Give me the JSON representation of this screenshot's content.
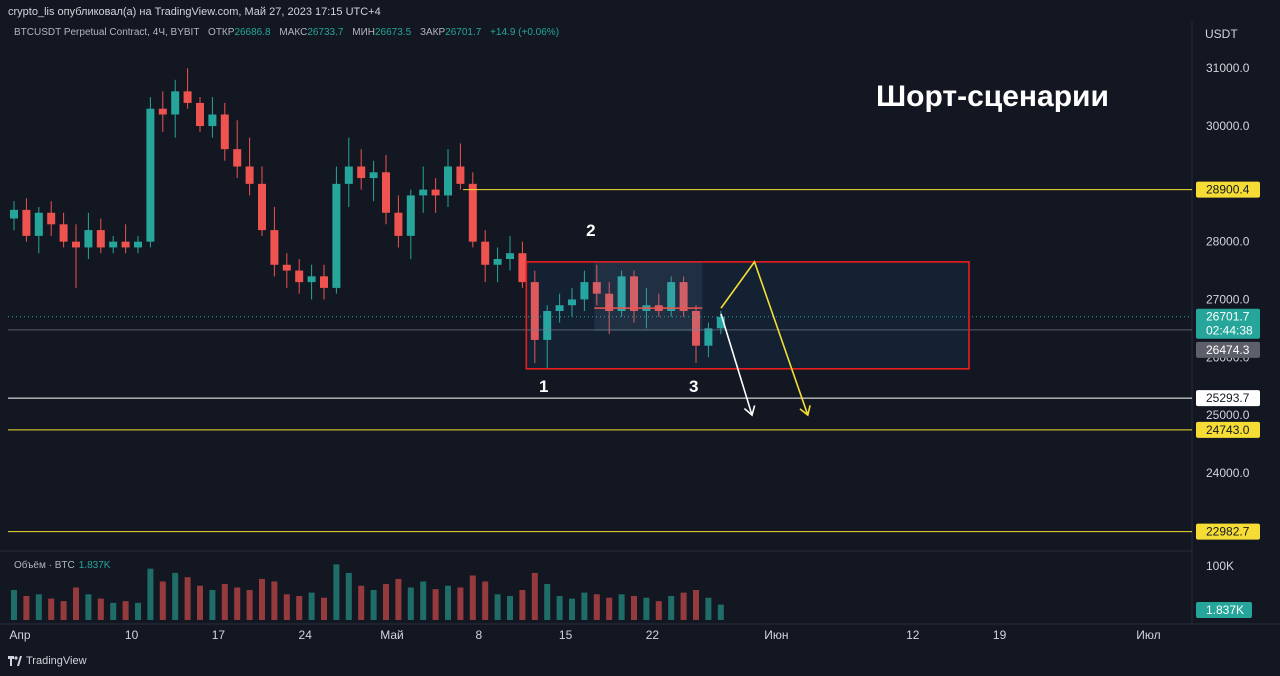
{
  "header": {
    "published": "crypto_lis опубликовал(а) на TradingView.com, Май 27, 2023 17:15 UTC+4"
  },
  "legend": {
    "symbol": "BTCUSDT Perpetual Contract, 4Ч, BYBIT",
    "open_label": "ОТКР",
    "open": "26686.8",
    "high_label": "МАКС",
    "high": "26733.7",
    "low_label": "МИН",
    "low": "26673.5",
    "close_label": "ЗАКР",
    "close": "26701.7",
    "change": "+14.9 (+0.06%)"
  },
  "volume_legend": {
    "label": "Объём · BTC",
    "value": "1.837K"
  },
  "footer": {
    "brand": "TradingView"
  },
  "colors": {
    "background": "#131722",
    "up": "#26a69a",
    "down": "#ef5350",
    "yellow": "#f5dd36",
    "white": "#ffffff",
    "box_border": "#e91e1e"
  },
  "chart_data": {
    "type": "candlestick",
    "title": "Шорт-сценарии",
    "currency": "USDT",
    "y_ticks": [
      "31000.0",
      "30000.0",
      "28000.0",
      "27000.0",
      "26000.0",
      "25000.0",
      "24000.0"
    ],
    "ylim": [
      22700,
      31800
    ],
    "x_ticks": [
      {
        "label": "Апр",
        "day": 0
      },
      {
        "label": "10",
        "day": 9
      },
      {
        "label": "17",
        "day": 16
      },
      {
        "label": "24",
        "day": 23
      },
      {
        "label": "Май",
        "day": 30
      },
      {
        "label": "8",
        "day": 37
      },
      {
        "label": "15",
        "day": 44
      },
      {
        "label": "22",
        "day": 51
      },
      {
        "label": "Июн",
        "day": 61
      },
      {
        "label": "12",
        "day": 72
      },
      {
        "label": "19",
        "day": 79
      },
      {
        "label": "Июл",
        "day": 91
      }
    ],
    "levels": [
      {
        "value": "28900.4",
        "color": "yellow",
        "start_day": 36.7
      },
      {
        "value": "25293.7",
        "color": "white",
        "start_day": 0
      },
      {
        "value": "24743.0",
        "color": "yellow",
        "start_day": 0
      },
      {
        "value": "22982.7",
        "color": "yellow",
        "start_day": 0
      }
    ],
    "price_tags": [
      {
        "value": "26701.7",
        "sub": "02:44:38",
        "kind": "last"
      },
      {
        "value": "26474.3",
        "kind": "grey"
      }
    ],
    "gray_line_value": 26474.3,
    "range_box": {
      "day_start": 41.8,
      "day_end": 77.5,
      "top": 27650,
      "bottom": 25800
    },
    "labels": [
      {
        "text": "1",
        "day": 43.2,
        "price": 25400
      },
      {
        "text": "2",
        "day": 47.0,
        "price": 28100
      },
      {
        "text": "3",
        "day": 55.3,
        "price": 25400
      }
    ],
    "scenarios": [
      {
        "color": "white",
        "points": [
          [
            57.5,
            26750
          ],
          [
            60.0,
            25000
          ]
        ]
      },
      {
        "color": "yellow",
        "points": [
          [
            57.5,
            26850
          ],
          [
            60.2,
            27650
          ],
          [
            64.5,
            25000
          ]
        ]
      }
    ],
    "volume_axis": "100K",
    "volume_tag": "1.837K",
    "candles": [
      {
        "day": 0,
        "o": 28400,
        "h": 28700,
        "l": 28200,
        "c": 28550
      },
      {
        "day": 1,
        "o": 28550,
        "h": 28750,
        "l": 28000,
        "c": 28100
      },
      {
        "day": 2,
        "o": 28100,
        "h": 28600,
        "l": 27800,
        "c": 28500
      },
      {
        "day": 3,
        "o": 28500,
        "h": 28700,
        "l": 28100,
        "c": 28300
      },
      {
        "day": 4,
        "o": 28300,
        "h": 28500,
        "l": 27900,
        "c": 28000
      },
      {
        "day": 5,
        "o": 28000,
        "h": 28300,
        "l": 27200,
        "c": 27900
      },
      {
        "day": 6,
        "o": 27900,
        "h": 28500,
        "l": 27700,
        "c": 28200
      },
      {
        "day": 7,
        "o": 28200,
        "h": 28400,
        "l": 27800,
        "c": 27900
      },
      {
        "day": 8,
        "o": 27900,
        "h": 28100,
        "l": 27800,
        "c": 28000
      },
      {
        "day": 9,
        "o": 28000,
        "h": 28300,
        "l": 27800,
        "c": 27900
      },
      {
        "day": 10,
        "o": 27900,
        "h": 28100,
        "l": 27800,
        "c": 28000
      },
      {
        "day": 11,
        "o": 28000,
        "h": 30500,
        "l": 27900,
        "c": 30300
      },
      {
        "day": 12,
        "o": 30300,
        "h": 30600,
        "l": 29900,
        "c": 30200
      },
      {
        "day": 13,
        "o": 30200,
        "h": 30800,
        "l": 29800,
        "c": 30600
      },
      {
        "day": 14,
        "o": 30600,
        "h": 31000,
        "l": 30300,
        "c": 30400
      },
      {
        "day": 15,
        "o": 30400,
        "h": 30500,
        "l": 29900,
        "c": 30000
      },
      {
        "day": 16,
        "o": 30000,
        "h": 30500,
        "l": 29800,
        "c": 30200
      },
      {
        "day": 17,
        "o": 30200,
        "h": 30400,
        "l": 29400,
        "c": 29600
      },
      {
        "day": 18,
        "o": 29600,
        "h": 30100,
        "l": 29100,
        "c": 29300
      },
      {
        "day": 19,
        "o": 29300,
        "h": 29800,
        "l": 28800,
        "c": 29000
      },
      {
        "day": 20,
        "o": 29000,
        "h": 29300,
        "l": 28100,
        "c": 28200
      },
      {
        "day": 21,
        "o": 28200,
        "h": 28600,
        "l": 27400,
        "c": 27600
      },
      {
        "day": 22,
        "o": 27600,
        "h": 27800,
        "l": 27200,
        "c": 27500
      },
      {
        "day": 23,
        "o": 27500,
        "h": 27700,
        "l": 27100,
        "c": 27300
      },
      {
        "day": 24,
        "o": 27300,
        "h": 27600,
        "l": 27000,
        "c": 27400
      },
      {
        "day": 25,
        "o": 27400,
        "h": 27600,
        "l": 27000,
        "c": 27200
      },
      {
        "day": 26,
        "o": 27200,
        "h": 29300,
        "l": 27100,
        "c": 29000
      },
      {
        "day": 27,
        "o": 29000,
        "h": 29800,
        "l": 28600,
        "c": 29300
      },
      {
        "day": 28,
        "o": 29300,
        "h": 29600,
        "l": 28900,
        "c": 29100
      },
      {
        "day": 29,
        "o": 29100,
        "h": 29400,
        "l": 28700,
        "c": 29200
      },
      {
        "day": 30,
        "o": 29200,
        "h": 29500,
        "l": 28300,
        "c": 28500
      },
      {
        "day": 31,
        "o": 28500,
        "h": 28800,
        "l": 27900,
        "c": 28100
      },
      {
        "day": 32,
        "o": 28100,
        "h": 28900,
        "l": 27700,
        "c": 28800
      },
      {
        "day": 33,
        "o": 28800,
        "h": 29300,
        "l": 28500,
        "c": 28900
      },
      {
        "day": 34,
        "o": 28900,
        "h": 29100,
        "l": 28500,
        "c": 28800
      },
      {
        "day": 35,
        "o": 28800,
        "h": 29600,
        "l": 28600,
        "c": 29300
      },
      {
        "day": 36,
        "o": 29300,
        "h": 29700,
        "l": 28900,
        "c": 29000
      },
      {
        "day": 37,
        "o": 29000,
        "h": 29200,
        "l": 27900,
        "c": 28000
      },
      {
        "day": 38,
        "o": 28000,
        "h": 28200,
        "l": 27300,
        "c": 27600
      },
      {
        "day": 39,
        "o": 27600,
        "h": 27900,
        "l": 27300,
        "c": 27700
      },
      {
        "day": 40,
        "o": 27700,
        "h": 28100,
        "l": 27500,
        "c": 27800
      },
      {
        "day": 41,
        "o": 27800,
        "h": 28000,
        "l": 27200,
        "c": 27300
      },
      {
        "day": 42,
        "o": 27300,
        "h": 27500,
        "l": 25900,
        "c": 26300
      },
      {
        "day": 43,
        "o": 26300,
        "h": 26900,
        "l": 25800,
        "c": 26800
      },
      {
        "day": 44,
        "o": 26800,
        "h": 27100,
        "l": 26600,
        "c": 26900
      },
      {
        "day": 45,
        "o": 26900,
        "h": 27200,
        "l": 26700,
        "c": 27000
      },
      {
        "day": 46,
        "o": 27000,
        "h": 27500,
        "l": 26800,
        "c": 27300
      },
      {
        "day": 47,
        "o": 27300,
        "h": 27600,
        "l": 26900,
        "c": 27100
      },
      {
        "day": 48,
        "o": 27100,
        "h": 27300,
        "l": 26400,
        "c": 26800
      },
      {
        "day": 49,
        "o": 26800,
        "h": 27500,
        "l": 26700,
        "c": 27400
      },
      {
        "day": 50,
        "o": 27400,
        "h": 27500,
        "l": 26600,
        "c": 26800
      },
      {
        "day": 51,
        "o": 26800,
        "h": 27200,
        "l": 26500,
        "c": 26900
      },
      {
        "day": 52,
        "o": 26900,
        "h": 27100,
        "l": 26700,
        "c": 26800
      },
      {
        "day": 53,
        "o": 26800,
        "h": 27400,
        "l": 26700,
        "c": 27300
      },
      {
        "day": 54,
        "o": 27300,
        "h": 27400,
        "l": 26700,
        "c": 26800
      },
      {
        "day": 55,
        "o": 26800,
        "h": 26900,
        "l": 25900,
        "c": 26200
      },
      {
        "day": 56,
        "o": 26200,
        "h": 26600,
        "l": 26000,
        "c": 26500
      },
      {
        "day": 57,
        "o": 26500,
        "h": 26800,
        "l": 26400,
        "c": 26700
      }
    ],
    "volumes": [
      35,
      28,
      30,
      25,
      22,
      38,
      30,
      25,
      20,
      22,
      20,
      60,
      45,
      55,
      50,
      40,
      35,
      42,
      38,
      35,
      48,
      45,
      30,
      28,
      32,
      26,
      65,
      55,
      40,
      35,
      42,
      48,
      38,
      45,
      36,
      40,
      38,
      52,
      45,
      30,
      28,
      35,
      55,
      42,
      28,
      25,
      32,
      30,
      26,
      30,
      28,
      26,
      22,
      28,
      32,
      35,
      26,
      18
    ]
  }
}
